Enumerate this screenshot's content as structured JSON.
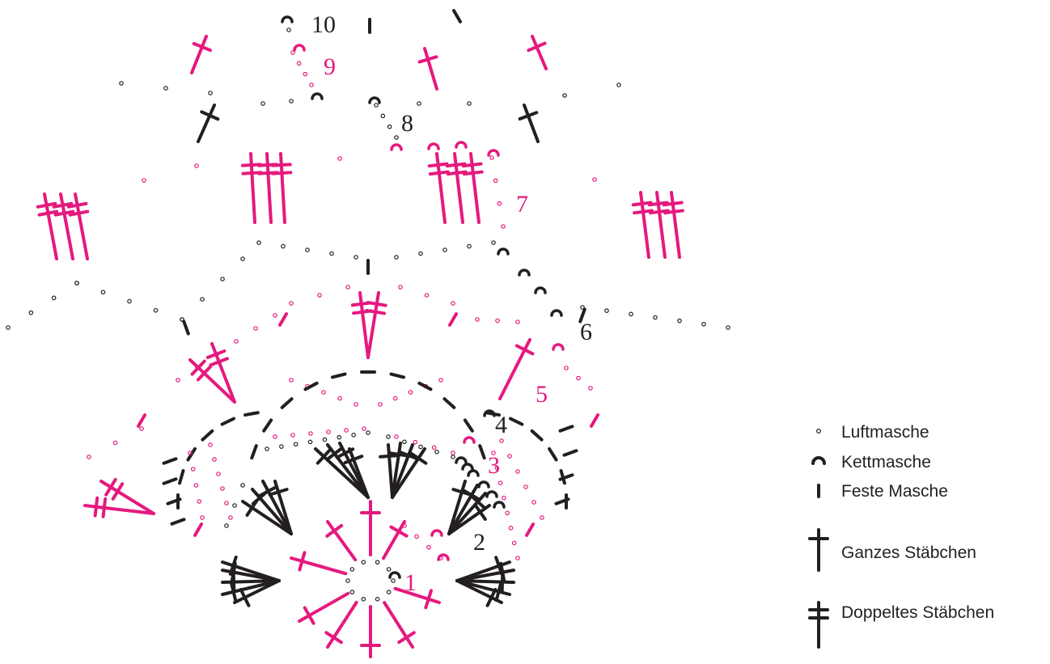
{
  "colors": {
    "black": "#231f20",
    "pink": "#e5197e"
  },
  "round_numbers": [
    {
      "label": "1",
      "color": "pink"
    },
    {
      "label": "2",
      "color": "black"
    },
    {
      "label": "3",
      "color": "pink"
    },
    {
      "label": "4",
      "color": "black"
    },
    {
      "label": "5",
      "color": "pink"
    },
    {
      "label": "6",
      "color": "black"
    },
    {
      "label": "7",
      "color": "pink"
    },
    {
      "label": "8",
      "color": "black"
    },
    {
      "label": "9",
      "color": "pink"
    },
    {
      "label": "10",
      "color": "black"
    }
  ],
  "legend": [
    {
      "symbol": "chain",
      "label": "Luftmasche"
    },
    {
      "symbol": "slip",
      "label": "Kettmasche"
    },
    {
      "symbol": "sc",
      "label": "Feste Masche"
    },
    {
      "symbol": "dc",
      "label": "Ganzes Stäbchen"
    },
    {
      "symbol": "tr",
      "label": "Doppeltes Stäbchen"
    }
  ]
}
